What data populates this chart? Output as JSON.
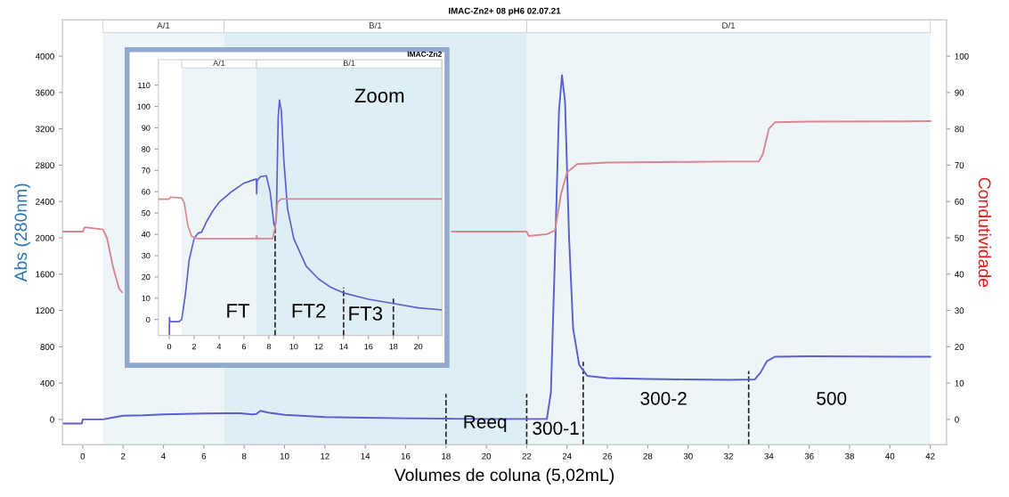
{
  "chart_data": [
    {
      "type": "line",
      "title": "IMAC-Zn2+ 08 pH6 02.07.21",
      "xlabel": "Volumes de coluna (5,02mL)",
      "ylabel": "Abs (280nm)",
      "y2label": "Condutividade",
      "series": [
        {
          "color": "#5a5fd0",
          "x": [
            -1,
            -0.05,
            0,
            1,
            1.5,
            2,
            3,
            4,
            6,
            7,
            7.8,
            8.4,
            8.6,
            8.8,
            9.2,
            10,
            12,
            14,
            16,
            18,
            20,
            22,
            23,
            23.2,
            23.4,
            23.6,
            23.75,
            23.9,
            24.1,
            24.3,
            24.6,
            25,
            26,
            28,
            30,
            32,
            33.3,
            33.6,
            33.9,
            34.3,
            36,
            42
          ],
          "values": [
            -45,
            -45,
            0,
            0,
            20,
            40,
            45,
            55,
            65,
            68,
            68,
            55,
            60,
            95,
            75,
            50,
            25,
            18,
            12,
            8,
            5,
            5,
            5,
            300,
            1800,
            3400,
            3790,
            3500,
            2000,
            1000,
            600,
            480,
            455,
            445,
            440,
            435,
            440,
            520,
            640,
            690,
            695,
            690
          ]
        },
        {
          "color": "#d9878f",
          "axis": "y2",
          "x": [
            -1,
            0,
            0.1,
            1,
            1.2,
            1.5,
            1.8,
            1.95,
            2.05,
            18.3,
            22,
            22.1,
            23,
            23.4,
            23.7,
            24,
            24.5,
            26,
            30,
            32,
            33.5,
            33.7,
            34,
            34.3,
            36,
            42
          ],
          "values": [
            51.7,
            51.7,
            52.9,
            52.3,
            50,
            42,
            36,
            35,
            null,
            51.7,
            51.7,
            50.5,
            51,
            52,
            62,
            68,
            70.3,
            70.7,
            70.9,
            71,
            71,
            73,
            80,
            81.8,
            82,
            82.1
          ]
        }
      ],
      "xlim": [
        -1,
        42.8
      ],
      "xticks": [
        0,
        2,
        4,
        6,
        8,
        10,
        12,
        14,
        16,
        18,
        20,
        22,
        24,
        26,
        28,
        30,
        32,
        34,
        36,
        38,
        40,
        42
      ],
      "ylim": [
        -280,
        4400
      ],
      "yticks": [
        0,
        400,
        800,
        1200,
        1600,
        2000,
        2400,
        2800,
        3200,
        3600,
        4000
      ],
      "y2lim": [
        -7,
        110
      ],
      "y2ticks": [
        0,
        10,
        20,
        30,
        40,
        50,
        60,
        70,
        80,
        90,
        100
      ],
      "bands": [
        {
          "axis": "x",
          "from": 1,
          "to": 7,
          "label": "A/1",
          "color": "#eef5f9"
        },
        {
          "axis": "x",
          "from": 7,
          "to": 22,
          "label": "B/1",
          "color": "#deeef5"
        },
        {
          "axis": "x",
          "from": 22,
          "to": 42,
          "label": "D/1",
          "color": "#eef5f9"
        }
      ],
      "ref_lines": [
        {
          "axis": "x",
          "value": 18,
          "color": "#222222",
          "line_style": "dashed"
        },
        {
          "axis": "x",
          "value": 22,
          "color": "#222222",
          "line_style": "dashed"
        },
        {
          "axis": "x",
          "value": 24.8,
          "color": "#222222",
          "line_style": "dashed"
        },
        {
          "axis": "x",
          "value": 33,
          "color": "#222222",
          "line_style": "dashed"
        }
      ],
      "annotations": [
        "Reeq",
        "300-1",
        "300-2",
        "500"
      ],
      "grid": false,
      "legend": false,
      "marker": "none",
      "line_style": "solid"
    },
    {
      "type": "line",
      "title": "IMAC-Zn2",
      "series": [
        {
          "color": "#5a5fd0",
          "x": [
            0,
            0.02,
            0.05,
            0.8,
            1,
            1.3,
            1.6,
            2,
            2.3,
            2.6,
            3,
            3.5,
            4,
            5,
            6,
            7,
            7.02,
            7.05,
            7.3,
            7.8,
            8.1,
            8.4,
            8.5,
            8.6,
            8.75,
            8.85,
            9,
            9.2,
            9.5,
            10,
            11,
            12,
            13,
            14,
            16,
            18,
            20,
            21.9
          ],
          "values": [
            -7,
            1,
            -1,
            -1,
            0,
            12,
            28,
            38,
            40.5,
            41,
            46,
            51,
            55,
            60,
            64,
            66,
            59,
            65,
            67,
            67.5,
            60,
            45,
            43,
            48,
            95,
            103,
            98,
            75,
            52,
            38,
            25,
            19,
            15,
            12.5,
            9.5,
            7.5,
            5.5,
            4.5
          ]
        },
        {
          "color": "#d9878f",
          "x": [
            -0.87,
            0,
            0.1,
            1,
            1.2,
            1.5,
            1.8,
            2.2,
            7,
            7.02,
            7.05,
            8.3,
            8.5,
            8.7,
            9,
            12,
            21.9
          ],
          "values": [
            56.5,
            56.5,
            57.5,
            57,
            55,
            44,
            39,
            38,
            38,
            39.5,
            38,
            38,
            43,
            55,
            56.6,
            56.6,
            56.6
          ]
        }
      ],
      "xlim": [
        -0.87,
        21.9
      ],
      "xticks": [
        0,
        2,
        4,
        6,
        8,
        10,
        12,
        14,
        16,
        18,
        20
      ],
      "ylim": [
        -7.5,
        122
      ],
      "yticks": [
        0,
        10,
        20,
        30,
        40,
        50,
        60,
        70,
        80,
        90,
        100,
        110
      ],
      "bands": [
        {
          "axis": "x",
          "from": 1,
          "to": 7,
          "label": "A/1",
          "color": "#eef5f9"
        },
        {
          "axis": "x",
          "from": 7,
          "to": 21.9,
          "label": "B/1",
          "color": "#deeef5"
        }
      ],
      "ref_lines": [
        {
          "axis": "x",
          "value": 8.5,
          "color": "#222222",
          "line_style": "dashed"
        },
        {
          "axis": "x",
          "value": 14,
          "color": "#222222",
          "line_style": "dashed"
        },
        {
          "axis": "x",
          "value": 18,
          "color": "#222222",
          "line_style": "dashed"
        }
      ],
      "annotations": [
        "Zoom",
        "FT",
        "FT2",
        "FT3"
      ],
      "tick_labels": "xy",
      "grid": false,
      "legend": false,
      "marker": "none",
      "line_style": "solid"
    }
  ]
}
